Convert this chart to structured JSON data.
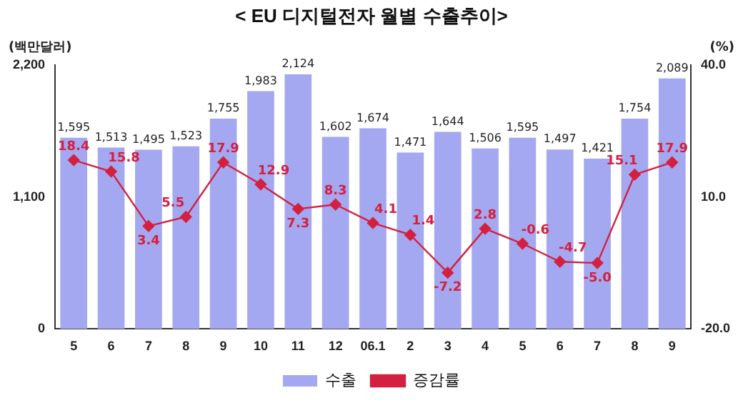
{
  "chart_data": {
    "type": "bar",
    "title": "< EU 디지털전자 월별 수출추이>",
    "ylabel": "(백만달러)",
    "y2label": "(%)",
    "categories": [
      "5",
      "6",
      "7",
      "8",
      "9",
      "10",
      "11",
      "12",
      "06.1",
      "2",
      "3",
      "4",
      "5",
      "6",
      "7",
      "8",
      "9"
    ],
    "series": [
      {
        "name": "수출",
        "color": "#a4a8f0",
        "values": [
          1595,
          1513,
          1495,
          1523,
          1755,
          1983,
          2124,
          1602,
          1674,
          1471,
          1644,
          1506,
          1595,
          1497,
          1421,
          1754,
          2089
        ],
        "value_labels": [
          "1,595",
          "1,513",
          "1,495",
          "1,523",
          "1,755",
          "1,983",
          "2,124",
          "1,602",
          "1,674",
          "1,471",
          "1,644",
          "1,506",
          "1,595",
          "1,497",
          "1,421",
          "1,754",
          "2,089"
        ]
      },
      {
        "name": "증감률",
        "type": "line",
        "axis": "y2",
        "color": "#d42040",
        "marker": "diamond",
        "values": [
          18.4,
          15.8,
          3.4,
          5.5,
          17.9,
          12.9,
          7.3,
          8.3,
          4.1,
          1.4,
          -7.2,
          2.8,
          -0.6,
          -4.7,
          -5.0,
          15.1,
          17.9
        ],
        "value_labels": [
          "18.4",
          "15.8",
          "3.4",
          "5.5",
          "17.9",
          "12.9",
          "7.3",
          "8.3",
          "4.1",
          "1.4",
          "-7.2",
          "2.8",
          "-0.6",
          "-4.7",
          "-5.0",
          "15.1",
          "17.9"
        ]
      }
    ],
    "ylim": [
      0,
      2200
    ],
    "yticks": [
      {
        "value": 0,
        "label": "0"
      },
      {
        "value": 1100,
        "label": "1,100"
      },
      {
        "value": 2200,
        "label": "2,200"
      }
    ],
    "y2lim": [
      -20,
      40
    ],
    "y2ticks": [
      {
        "value": -20,
        "label": "-20.0"
      },
      {
        "value": 10,
        "label": "10.0"
      },
      {
        "value": 40,
        "label": "40.0"
      }
    ],
    "grid": false,
    "legend": "bottom"
  }
}
